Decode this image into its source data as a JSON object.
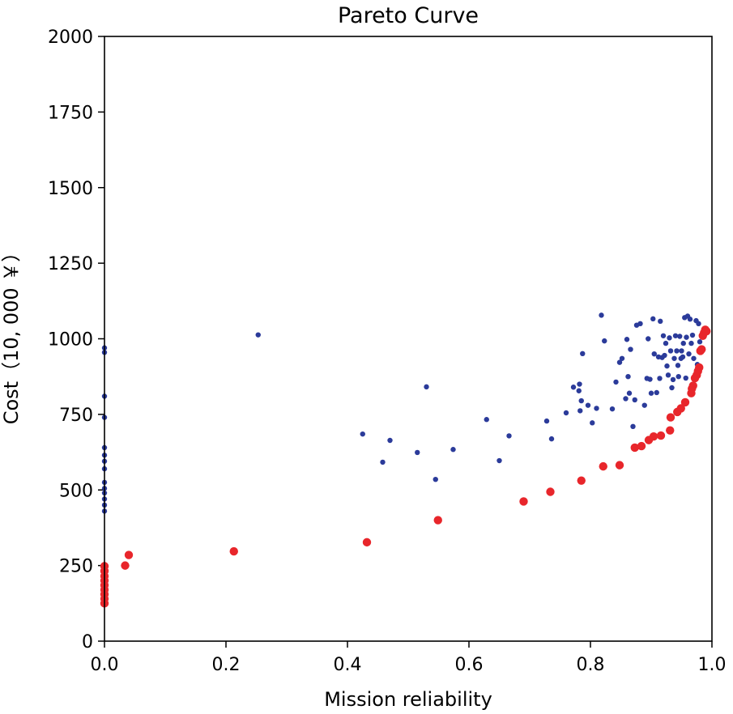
{
  "chart_data": {
    "type": "scatter",
    "title": "Pareto Curve",
    "xlabel": "Mission reliability",
    "ylabel": "Cost（10, 000 ￥）",
    "xlim": [
      0.0,
      1.0
    ],
    "ylim": [
      0,
      2000
    ],
    "xticks": [
      "0.0",
      "0.2",
      "0.4",
      "0.6",
      "0.8",
      "1.0"
    ],
    "yticks": [
      "0",
      "250",
      "500",
      "750",
      "1000",
      "1250",
      "1500",
      "1750",
      "2000"
    ],
    "grid": false,
    "legend": "none",
    "colors": {
      "blue": "#2b3b9a",
      "red": "#e8262b"
    },
    "series": [
      {
        "color": "#2b3b9a",
        "points": [
          [
            0.0,
            970
          ],
          [
            0.0,
            955
          ],
          [
            0.0,
            810
          ],
          [
            0.0,
            740
          ],
          [
            0.0,
            640
          ],
          [
            0.0,
            615
          ],
          [
            0.0,
            595
          ],
          [
            0.0,
            570
          ],
          [
            0.0,
            525
          ],
          [
            0.0,
            505
          ],
          [
            0.0,
            490
          ],
          [
            0.0,
            470
          ],
          [
            0.0,
            450
          ],
          [
            0.0,
            430
          ],
          [
            0.253,
            1013
          ],
          [
            0.425,
            685
          ],
          [
            0.458,
            592
          ],
          [
            0.47,
            664
          ],
          [
            0.515,
            624
          ],
          [
            0.53,
            841
          ],
          [
            0.545,
            535
          ],
          [
            0.574,
            634
          ],
          [
            0.629,
            733
          ],
          [
            0.65,
            597
          ],
          [
            0.666,
            679
          ],
          [
            0.728,
            728
          ],
          [
            0.736,
            669
          ],
          [
            0.76,
            755
          ],
          [
            0.772,
            840
          ],
          [
            0.781,
            828
          ],
          [
            0.782,
            850
          ],
          [
            0.783,
            762
          ],
          [
            0.785,
            795
          ],
          [
            0.787,
            951
          ],
          [
            0.796,
            780
          ],
          [
            0.803,
            722
          ],
          [
            0.81,
            770
          ],
          [
            0.818,
            1078
          ],
          [
            0.823,
            993
          ],
          [
            0.836,
            768
          ],
          [
            0.842,
            857
          ],
          [
            0.848,
            922
          ],
          [
            0.852,
            935
          ],
          [
            0.858,
            802
          ],
          [
            0.86,
            998
          ],
          [
            0.862,
            875
          ],
          [
            0.864,
            820
          ],
          [
            0.866,
            965
          ],
          [
            0.87,
            710
          ],
          [
            0.873,
            798
          ],
          [
            0.876,
            1045
          ],
          [
            0.882,
            1050
          ],
          [
            0.889,
            780
          ],
          [
            0.893,
            869
          ],
          [
            0.895,
            1000
          ],
          [
            0.898,
            866
          ],
          [
            0.9,
            820
          ],
          [
            0.903,
            1066
          ],
          [
            0.905,
            950
          ],
          [
            0.909,
            822
          ],
          [
            0.912,
            940
          ],
          [
            0.914,
            869
          ],
          [
            0.915,
            1058
          ],
          [
            0.918,
            938
          ],
          [
            0.92,
            1010
          ],
          [
            0.922,
            945
          ],
          [
            0.924,
            985
          ],
          [
            0.926,
            910
          ],
          [
            0.928,
            880
          ],
          [
            0.93,
            1003
          ],
          [
            0.932,
            960
          ],
          [
            0.934,
            838
          ],
          [
            0.936,
            865
          ],
          [
            0.938,
            935
          ],
          [
            0.94,
            1010
          ],
          [
            0.942,
            960
          ],
          [
            0.944,
            912
          ],
          [
            0.945,
            875
          ],
          [
            0.947,
            1008
          ],
          [
            0.949,
            935
          ],
          [
            0.95,
            960
          ],
          [
            0.952,
            940
          ],
          [
            0.953,
            985
          ],
          [
            0.955,
            1070
          ],
          [
            0.957,
            870
          ],
          [
            0.958,
            1005
          ],
          [
            0.96,
            1075
          ],
          [
            0.962,
            950
          ],
          [
            0.964,
            1065
          ],
          [
            0.966,
            985
          ],
          [
            0.968,
            1012
          ],
          [
            0.97,
            935
          ],
          [
            0.972,
            870
          ],
          [
            0.974,
            1060
          ],
          [
            0.976,
            915
          ],
          [
            0.978,
            1050
          ],
          [
            0.98,
            990
          ]
        ]
      },
      {
        "color": "#e8262b",
        "points": [
          [
            0.0,
            125
          ],
          [
            0.0,
            140
          ],
          [
            0.0,
            155
          ],
          [
            0.0,
            170
          ],
          [
            0.0,
            185
          ],
          [
            0.0,
            200
          ],
          [
            0.0,
            215
          ],
          [
            0.0,
            232
          ],
          [
            0.0,
            248
          ],
          [
            0.034,
            250
          ],
          [
            0.04,
            285
          ],
          [
            0.213,
            297
          ],
          [
            0.432,
            327
          ],
          [
            0.549,
            400
          ],
          [
            0.69,
            462
          ],
          [
            0.734,
            494
          ],
          [
            0.785,
            531
          ],
          [
            0.821,
            578
          ],
          [
            0.848,
            582
          ],
          [
            0.873,
            640
          ],
          [
            0.884,
            645
          ],
          [
            0.896,
            665
          ],
          [
            0.904,
            677
          ],
          [
            0.916,
            680
          ],
          [
            0.931,
            697
          ],
          [
            0.932,
            740
          ],
          [
            0.943,
            758
          ],
          [
            0.949,
            770
          ],
          [
            0.956,
            790
          ],
          [
            0.966,
            820
          ],
          [
            0.967,
            835
          ],
          [
            0.969,
            845
          ],
          [
            0.972,
            870
          ],
          [
            0.975,
            880
          ],
          [
            0.977,
            893
          ],
          [
            0.979,
            905
          ],
          [
            0.981,
            960
          ],
          [
            0.983,
            965
          ],
          [
            0.985,
            1010
          ],
          [
            0.987,
            1020
          ],
          [
            0.989,
            1030
          ],
          [
            0.991,
            1025
          ]
        ]
      }
    ]
  }
}
